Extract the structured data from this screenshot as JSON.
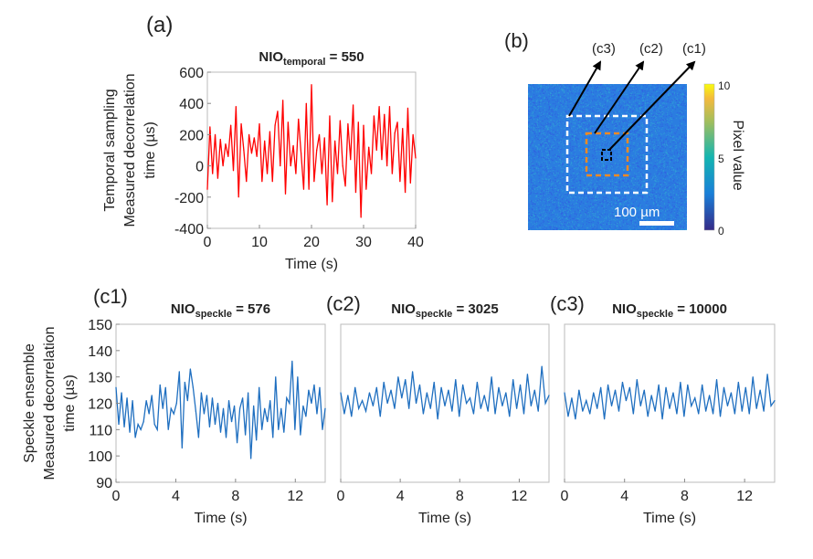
{
  "panel_labels": {
    "a": "(a)",
    "b": "(b)",
    "c1": "(c1)",
    "c2": "(c2)",
    "c3": "(c3)"
  },
  "chart_data": [
    {
      "id": "a",
      "type": "line",
      "title": {
        "main": "NIO",
        "sub": "temporal",
        "suffix": " = 550"
      },
      "xlabel": "Time (s)",
      "ylabel": [
        "Temporal sampling",
        "Measured decorrelation",
        "time (µs)"
      ],
      "xlim": [
        0,
        40
      ],
      "ylim": [
        -400,
        600
      ],
      "xticks": [
        0,
        10,
        20,
        30,
        40
      ],
      "yticks": [
        -400,
        -200,
        0,
        200,
        400,
        600
      ],
      "color": "#ff0000",
      "values": [
        -150,
        250,
        -50,
        200,
        -80,
        170,
        0,
        140,
        60,
        260,
        -30,
        380,
        -200,
        270,
        100,
        -100,
        200,
        80,
        180,
        60,
        270,
        -100,
        160,
        -50,
        220,
        -100,
        260,
        350,
        0,
        420,
        -180,
        280,
        0,
        130,
        -50,
        300,
        80,
        -150,
        400,
        -150,
        520,
        -100,
        100,
        200,
        -50,
        180,
        -250,
        320,
        -230,
        160,
        -50,
        290,
        0,
        -130,
        270,
        40,
        390,
        -170,
        280,
        -330,
        260,
        -150,
        120,
        -50,
        320,
        100,
        380,
        40,
        330,
        0,
        380,
        -50,
        210,
        280,
        -100,
        240,
        -170,
        370,
        -110,
        200,
        50
      ]
    },
    {
      "id": "b",
      "type": "heatmap",
      "colorbar": {
        "label": "Pixel value",
        "ticks": [
          0,
          5,
          10
        ]
      },
      "scalebar": "100 µm",
      "roi_labels": [
        "(c3)",
        "(c2)",
        "(c1)"
      ],
      "roi_colors": [
        "#ffffff",
        "#f08a24",
        "#000000"
      ]
    },
    {
      "id": "c1",
      "type": "line",
      "title": {
        "main": "NIO",
        "sub": "speckle",
        "suffix": " = 576"
      },
      "xlabel": "Time (s)",
      "ylabel": [
        "Speckle  ensemble",
        "Measured decorrelation",
        "time (µs)"
      ],
      "xlim": [
        0,
        14
      ],
      "ylim": [
        90,
        150
      ],
      "xticks": [
        0,
        4,
        8,
        12
      ],
      "yticks": [
        90,
        100,
        110,
        120,
        130,
        140,
        150
      ],
      "color": "#1f6fc0",
      "values": [
        126,
        112,
        124,
        111,
        122,
        109,
        121,
        107,
        112,
        110,
        113,
        121,
        116,
        123,
        112,
        110,
        127,
        118,
        126,
        110,
        118,
        116,
        120,
        132,
        103,
        128,
        121,
        133,
        126,
        117,
        107,
        124,
        116,
        123,
        111,
        122,
        112,
        120,
        109,
        118,
        107,
        121,
        113,
        119,
        105,
        118,
        122,
        108,
        124,
        99,
        119,
        106,
        126,
        110,
        118,
        113,
        121,
        107,
        130,
        110,
        118,
        109,
        122,
        120,
        136,
        110,
        130,
        108,
        119,
        115,
        125,
        120,
        127,
        116,
        126,
        110,
        118
      ]
    },
    {
      "id": "c2",
      "type": "line",
      "title": {
        "main": "NIO",
        "sub": "speckle",
        "suffix": " = 3025"
      },
      "xlabel": "Time (s)",
      "xlim": [
        0,
        14
      ],
      "ylim": [
        90,
        150
      ],
      "xticks": [
        0,
        4,
        8,
        12
      ],
      "color": "#1f6fc0",
      "values": [
        124,
        116,
        123,
        115,
        126,
        118,
        121,
        117,
        124,
        119,
        126,
        115,
        128,
        120,
        125,
        118,
        130,
        122,
        129,
        118,
        132,
        120,
        127,
        116,
        124,
        118,
        128,
        114,
        126,
        119,
        125,
        117,
        129,
        115,
        127,
        120,
        122,
        116,
        128,
        118,
        123,
        117,
        130,
        116,
        126,
        119,
        124,
        115,
        129,
        118,
        127,
        116,
        131,
        119,
        125,
        117,
        134,
        120,
        123
      ]
    },
    {
      "id": "c3",
      "type": "line",
      "title": {
        "main": "NIO",
        "sub": "speckle",
        "suffix": " = 10000"
      },
      "xlabel": "Time (s)",
      "xlim": [
        0,
        14
      ],
      "ylim": [
        90,
        150
      ],
      "xticks": [
        0,
        4,
        8,
        12
      ],
      "color": "#1f6fc0",
      "values": [
        124,
        115,
        122,
        114,
        125,
        117,
        121,
        116,
        124,
        118,
        126,
        114,
        127,
        119,
        125,
        117,
        128,
        121,
        126,
        116,
        129,
        119,
        125,
        115,
        123,
        117,
        127,
        114,
        126,
        118,
        124,
        116,
        128,
        115,
        127,
        119,
        122,
        116,
        127,
        117,
        123,
        116,
        129,
        115,
        126,
        119,
        124,
        116,
        128,
        117,
        126,
        116,
        130,
        118,
        125,
        117,
        131,
        119,
        121
      ]
    }
  ]
}
